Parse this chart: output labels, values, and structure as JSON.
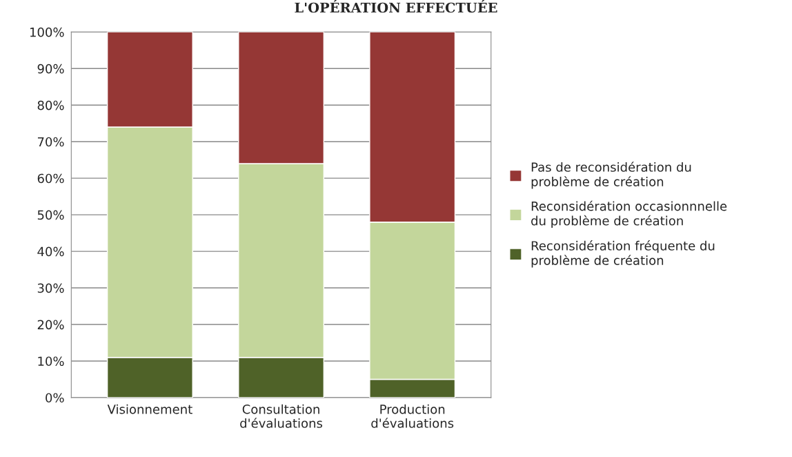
{
  "chart_data": {
    "type": "bar",
    "title": "L'OPÉRATION EFFECTUÉE",
    "categories": [
      "Visionnement",
      "Consultation\nd'évaluations",
      "Production\nd'évaluations"
    ],
    "series": [
      {
        "name": "Reconsidération fréquente du\nproblème de création",
        "color": "#4f6228",
        "values": [
          11,
          11,
          5
        ]
      },
      {
        "name": "Reconsidération occasionnnelle\ndu problème de création",
        "color": "#c3d69b",
        "values": [
          63,
          53,
          43
        ]
      },
      {
        "name": "Pas de reconsidération du\nproblème de création",
        "color": "#953735",
        "values": [
          26,
          36,
          52
        ]
      }
    ],
    "stacked": true,
    "ylim": [
      0,
      100
    ],
    "yticks": [
      {
        "value": 0,
        "label": "0%"
      },
      {
        "value": 10,
        "label": "10%"
      },
      {
        "value": 20,
        "label": "20%"
      },
      {
        "value": 30,
        "label": "30%"
      },
      {
        "value": 40,
        "label": "40%"
      },
      {
        "value": 50,
        "label": "50%"
      },
      {
        "value": 60,
        "label": "60%"
      },
      {
        "value": 70,
        "label": "70%"
      },
      {
        "value": 80,
        "label": "80%"
      },
      {
        "value": 90,
        "label": "90%"
      },
      {
        "value": 100,
        "label": "100%"
      }
    ],
    "grid": "y",
    "legend": "right"
  }
}
